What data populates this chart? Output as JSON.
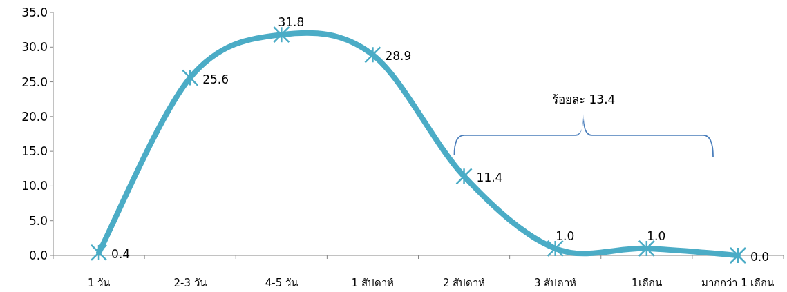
{
  "chart_data": {
    "type": "line",
    "categories": [
      "1 วัน",
      "2-3 วัน",
      "4-5 วัน",
      "1 สัปดาห์",
      "2 สัปดาห์",
      "3 สัปดาห์",
      "1เดือน",
      "มากกว่า 1 เดือน"
    ],
    "series": [
      {
        "color": "#4bacc6",
        "values": [
          0.4,
          25.6,
          31.8,
          28.9,
          11.4,
          1.0,
          1.0,
          0.0
        ]
      }
    ],
    "ylim": [
      0,
      35
    ],
    "yticks": [
      {
        "value": 0,
        "label": "0.0"
      },
      {
        "value": 5,
        "label": "5.0"
      },
      {
        "value": 10,
        "label": "10.0"
      },
      {
        "value": 15,
        "label": "15.0"
      },
      {
        "value": 20,
        "label": "20.0"
      },
      {
        "value": 25,
        "label": "25.0"
      },
      {
        "value": 30,
        "label": "30.0"
      },
      {
        "value": 35,
        "label": "35.0"
      }
    ],
    "value_labels": [
      "0.4",
      "25.6",
      "31.8",
      "28.9",
      "11.4",
      "1.0",
      "1.0",
      "0.0"
    ],
    "marker": "cross",
    "grid": false,
    "annotations": [
      "ร้อยละ 13.4"
    ]
  }
}
